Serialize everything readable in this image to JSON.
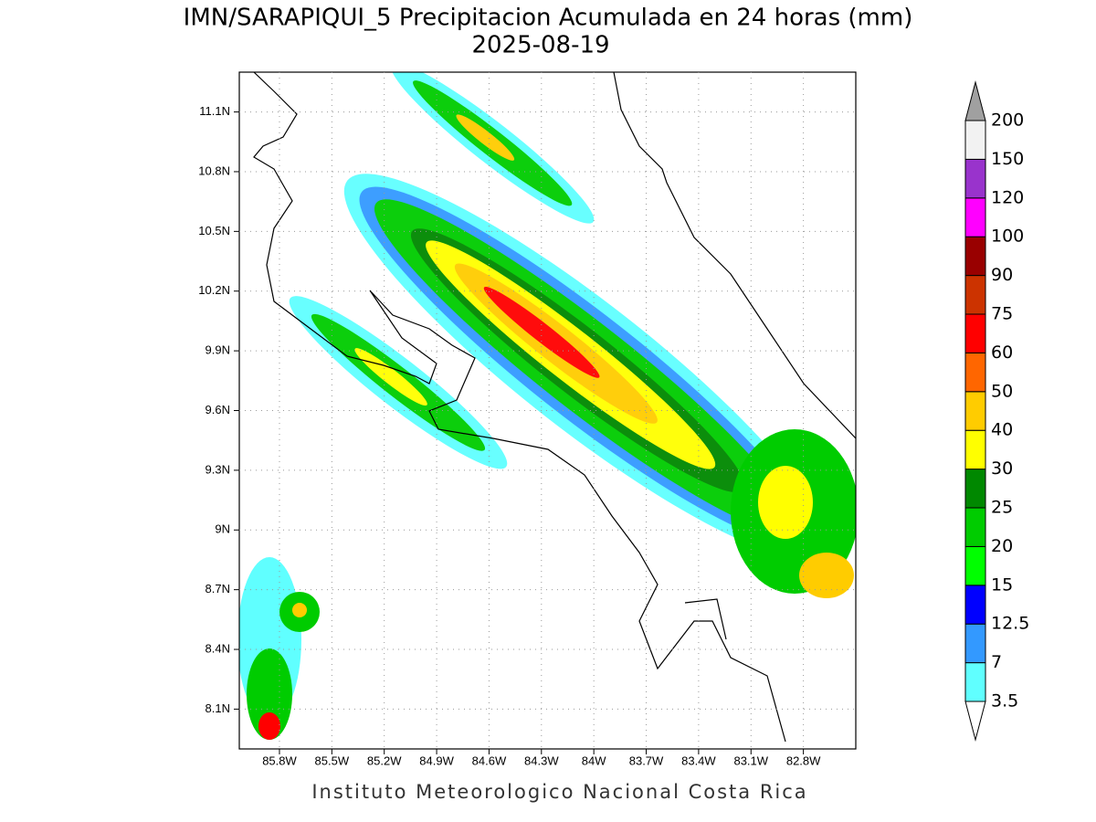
{
  "title": "IMN/SARAPIQUI_5 Precipitacion Acumulada en 24 horas (mm)",
  "date": "2025-08-19",
  "footer": "Instituto Meteorologico Nacional Costa Rica",
  "map": {
    "xlim": [
      -86.03,
      -82.5
    ],
    "ylim": [
      7.9,
      11.3
    ],
    "xticks": [
      {
        "value": -85.8,
        "label": "85.8W"
      },
      {
        "value": -85.5,
        "label": "85.5W"
      },
      {
        "value": -85.2,
        "label": "85.2W"
      },
      {
        "value": -84.9,
        "label": "84.9W"
      },
      {
        "value": -84.6,
        "label": "84.6W"
      },
      {
        "value": -84.3,
        "label": "84.3W"
      },
      {
        "value": -84,
        "label": "84W"
      },
      {
        "value": -83.7,
        "label": "83.7W"
      },
      {
        "value": -83.4,
        "label": "83.4W"
      },
      {
        "value": -83.1,
        "label": "83.1W"
      },
      {
        "value": -82.8,
        "label": "82.8W"
      }
    ],
    "yticks": [
      {
        "value": 11.1,
        "label": "11.1N"
      },
      {
        "value": 10.8,
        "label": "10.8N"
      },
      {
        "value": 10.5,
        "label": "10.5N"
      },
      {
        "value": 10.2,
        "label": "10.2N"
      },
      {
        "value": 9.9,
        "label": "9.9N"
      },
      {
        "value": 9.6,
        "label": "9.6N"
      },
      {
        "value": 9.3,
        "label": "9.3N"
      },
      {
        "value": 9,
        "label": "9N"
      },
      {
        "value": 8.7,
        "label": "8.7N"
      },
      {
        "value": 8.4,
        "label": "8.4N"
      },
      {
        "value": 8.1,
        "label": "8.1N"
      }
    ],
    "grid": true
  },
  "colorbar": {
    "levels": [
      3.5,
      7,
      12.5,
      15,
      20,
      25,
      30,
      40,
      50,
      60,
      75,
      90,
      100,
      120,
      150,
      200
    ],
    "colors": [
      "#60ffff",
      "#3399ff",
      "#0000ff",
      "#00ff00",
      "#00cc00",
      "#008800",
      "#ffff00",
      "#ffcc00",
      "#ff6600",
      "#ff0000",
      "#cc3300",
      "#990000",
      "#ff00ff",
      "#9933cc",
      "#f2f2f2"
    ],
    "under_color": "#ffffff",
    "over_color": "#a0a0a0"
  }
}
